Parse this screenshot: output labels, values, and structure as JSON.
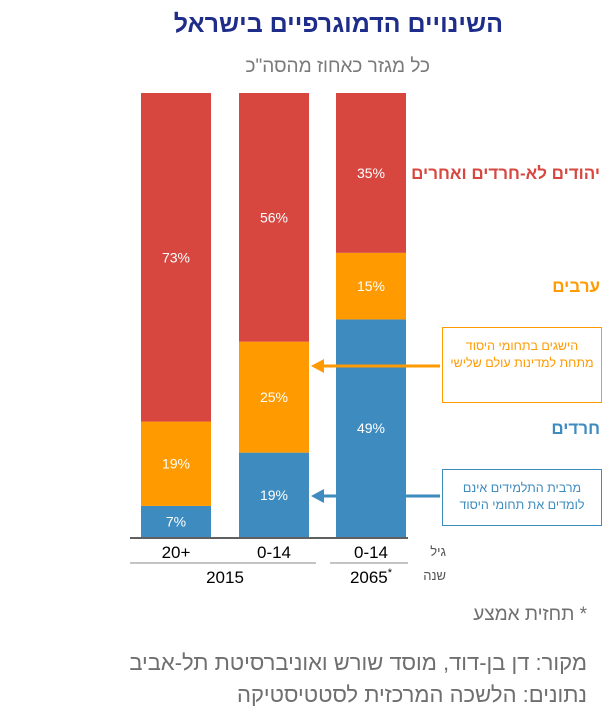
{
  "chart_data": {
    "type": "bar",
    "stacked": true,
    "title": "השינויים הדמוגרפיים בישראל",
    "subtitle": "כל מגזר כאחוז מהסה\"כ",
    "categories": [
      "20+",
      "0-14",
      "0-14"
    ],
    "years": [
      "2015",
      "2065*"
    ],
    "year_groups": [
      {
        "label": "2015",
        "columns": [
          0,
          1
        ]
      },
      {
        "label": "2065*",
        "columns": [
          2
        ]
      }
    ],
    "axis_labels": {
      "age": "גיל",
      "year": "שנה"
    },
    "ylim": [
      0,
      100
    ],
    "series": [
      {
        "name": "חרדים",
        "color": "#3e8bc0",
        "values": [
          7,
          19,
          49
        ]
      },
      {
        "name": "ערבים",
        "color": "#ff9a00",
        "values": [
          19,
          25,
          15
        ]
      },
      {
        "name": "יהודים לא-חרדים ואחרים",
        "color": "#d7473f",
        "values": [
          73,
          56,
          35
        ]
      }
    ],
    "value_labels": [
      [
        "7%",
        "19%",
        "49%"
      ],
      [
        "19%",
        "25%",
        "15%"
      ],
      [
        "73%",
        "56%",
        "35%"
      ]
    ],
    "annotations": [
      {
        "text": "הישגים בתחומי היסוד מתחת למדינות עולם שלישי",
        "color": "#ff9a00"
      },
      {
        "text": "מרבית התלמידים אינם לומדים את תחומי היסוד",
        "color": "#3e8bc0"
      }
    ]
  },
  "footer": {
    "footnote": "* תחזית אמצע",
    "source": "מקור: דן בן-דוד, מוסד שורש ואוניברסיטת תל-אביב",
    "data_source": "נתונים: הלשכה המרכזית לסטטיסטיקה"
  },
  "colors": {
    "title": "#1f2d8a",
    "subtitle": "#7a7a7a",
    "red": "#d7473f",
    "orange": "#ff9a00",
    "blue": "#3e8bc0"
  }
}
